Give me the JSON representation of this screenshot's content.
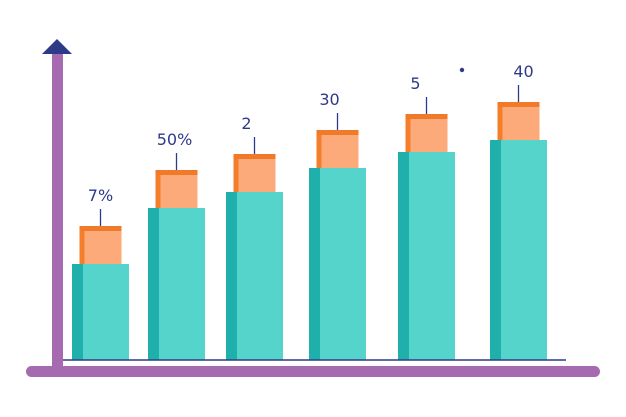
{
  "chart_data": {
    "type": "bar",
    "style": "3d-infographic",
    "categories": [
      "",
      "",
      "",
      "",
      "",
      ""
    ],
    "series": [
      {
        "values": [
          24,
          38,
          42,
          48,
          52,
          55
        ]
      }
    ],
    "data_labels": [
      "7%",
      "50%",
      "2",
      "30",
      "5",
      "40"
    ],
    "title": "",
    "xlabel": "",
    "ylabel": "",
    "ylim": [
      0,
      80
    ],
    "grid": false,
    "legend": "none"
  },
  "colors": {
    "axis": "#a66ab0",
    "arrow": "#2e3a87",
    "bar_face": "#55d4cb",
    "bar_side": "#1fb0ac",
    "cap_face": "#fdaa7b",
    "cap_side": "#f57e2a",
    "cap_top": "#f07a2a",
    "baseline": "#2e3a87",
    "label": "#2e3a87"
  },
  "icons": {
    "axis_arrow": "up-arrow-icon",
    "decor_dot": "dot-icon"
  }
}
